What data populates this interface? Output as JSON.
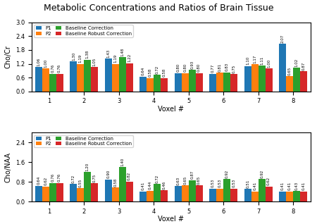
{
  "title": "Metabolic Concentrations and Ratios of Brain Tissue",
  "chart_data": [
    {
      "type": "bar",
      "x_label": "Voxel #",
      "y_label": "Cho/Cr",
      "categories": [
        "1",
        "2",
        "3",
        "4",
        "5",
        "6",
        "7",
        "8"
      ],
      "series": [
        {
          "name": "P1",
          "values": [
            1.06,
            1.3,
            1.43,
            0.64,
            0.8,
            0.77,
            1.1,
            2.07
          ],
          "value_labels": [
            "1.06",
            "1.30",
            "1.43",
            "0.64",
            "0.80",
            "0.77",
            "1.10",
            "2.07"
          ]
        },
        {
          "name": "P2",
          "values": [
            1.0,
            1.19,
            1.19,
            0.58,
            0.8,
            0.81,
            1.17,
            0.65
          ],
          "value_labels": [
            "1.00",
            "1.19",
            "1.19",
            "0.58",
            "0.80",
            "0.81",
            "1.17",
            "0.65"
          ]
        },
        {
          "name": "Baseline Correction",
          "values": [
            0.76,
            1.38,
            1.48,
            0.72,
            0.93,
            0.83,
            1.11,
            1.02
          ],
          "value_labels": [
            "0.76",
            "1.38",
            "1.48",
            "0.72",
            "0.93",
            "0.83",
            "1.11",
            "1.02"
          ]
        },
        {
          "name": "Baseline Robust Correction",
          "values": [
            0.76,
            1.05,
            1.22,
            0.58,
            0.8,
            0.75,
            1.0,
            0.87
          ],
          "value_labels": [
            "0.76",
            "1.05",
            "1.22",
            "0.58",
            "0.80",
            "0.75",
            "1.00",
            "0.87"
          ]
        }
      ],
      "ylim": [
        0.0,
        3.0
      ],
      "yticks": [
        0.0,
        0.6,
        1.2,
        1.8,
        2.4,
        3.0
      ],
      "legend": "upper left",
      "data_labels": true
    },
    {
      "type": "bar",
      "x_label": "Voxel #",
      "y_label": "Cho/NAA",
      "categories": [
        "1",
        "2",
        "3",
        "4",
        "5",
        "6",
        "7",
        "8"
      ],
      "series": [
        {
          "name": "P1",
          "values": [
            0.64,
            0.72,
            0.9,
            0.41,
            0.63,
            0.53,
            0.51,
            0.41
          ],
          "value_labels": [
            "0.64",
            "0.72",
            "0.90",
            "0.41",
            "0.63",
            "0.53",
            "0.51",
            "0.41"
          ]
        },
        {
          "name": "P2",
          "values": [
            0.62,
            0.55,
            0.58,
            0.44,
            0.65,
            0.53,
            0.41,
            0.41
          ],
          "value_labels": [
            "0.62",
            "0.55",
            "0.58",
            "0.44",
            "0.65",
            "0.53",
            "0.41",
            "0.41"
          ]
        },
        {
          "name": "Baseline Correction",
          "values": [
            0.76,
            1.2,
            1.4,
            0.72,
            0.87,
            0.92,
            0.92,
            0.43
          ],
          "value_labels": [
            "0.76",
            "1.20",
            "1.40",
            "0.72",
            "0.87",
            "0.92",
            "0.92",
            "0.43"
          ]
        },
        {
          "name": "Baseline Robust Correction",
          "values": [
            0.76,
            0.75,
            0.82,
            0.46,
            0.65,
            0.53,
            0.62,
            0.41
          ],
          "value_labels": [
            "0.76",
            "0.75",
            "0.82",
            "0.46",
            "0.65",
            "0.53",
            "0.62",
            "0.41"
          ]
        }
      ],
      "ylim": [
        0.0,
        2.8
      ],
      "yticks": [
        0.0,
        0.8,
        1.6,
        2.4
      ],
      "legend": "upper left",
      "data_labels": true
    }
  ]
}
